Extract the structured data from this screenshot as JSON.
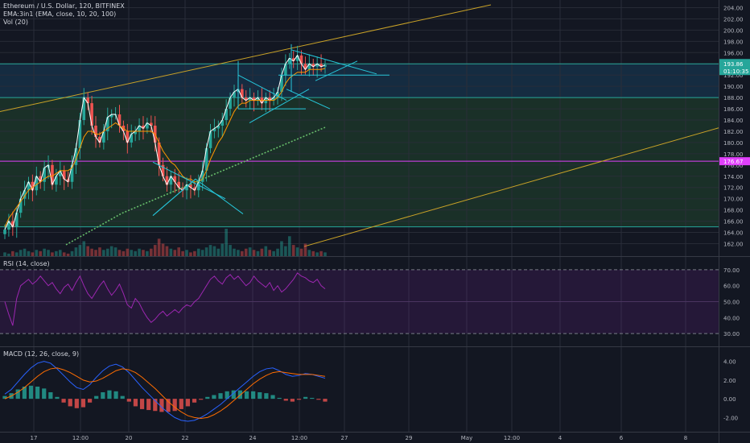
{
  "header": {
    "symbol_line": "Ethereum / U.S. Dollar, 120, BITFINEX",
    "ema_line": "EMA:3in1 (EMA, close, 10, 20, 100)",
    "vol_line": "Vol (20)"
  },
  "price_axis": {
    "ticks": [
      "204.00",
      "202.00",
      "200.00",
      "198.00",
      "196.00",
      "194.00",
      "192.00",
      "190.00",
      "188.00",
      "186.00",
      "184.00",
      "182.00",
      "180.00",
      "178.00",
      "176.00",
      "174.00",
      "172.00",
      "170.00",
      "168.00",
      "166.00",
      "164.00",
      "162.00"
    ],
    "last_price_label": "193.86",
    "countdown_label": "01:10:35",
    "level_label": "176.67",
    "last_color": "#26a69a",
    "level_color": "#e040fb"
  },
  "rsi": {
    "title": "RSI (14, close)",
    "ticks": [
      "70.00",
      "60.00",
      "50.00",
      "40.00",
      "30.00"
    ],
    "line_color": "#9c27b0",
    "values": [
      50,
      42,
      35,
      52,
      60,
      62,
      64,
      61,
      63,
      66,
      63,
      60,
      62,
      58,
      55,
      59,
      61,
      57,
      62,
      66,
      60,
      55,
      52,
      56,
      60,
      63,
      58,
      54,
      57,
      61,
      55,
      48,
      46,
      52,
      49,
      44,
      40,
      37,
      39,
      42,
      44,
      41,
      43,
      45,
      43,
      46,
      48,
      47,
      50,
      52,
      56,
      60,
      64,
      66,
      63,
      61,
      65,
      67,
      64,
      66,
      63,
      60,
      62,
      66,
      63,
      61,
      59,
      62,
      57,
      60,
      56,
      58,
      61,
      64,
      68,
      66,
      65,
      63,
      62,
      64,
      60,
      58
    ]
  },
  "macd": {
    "title": "MACD (12, 26, close, 9)",
    "ticks": [
      "4.00",
      "2.00",
      "0.00",
      "-2.00"
    ],
    "macd_color": "#2962ff",
    "signal_color": "#ff6d00",
    "hist_up": "#26a69a",
    "hist_down": "#ef5350",
    "macd_values": [
      0.5,
      1.0,
      1.8,
      2.6,
      3.3,
      3.8,
      4.0,
      3.8,
      3.2,
      2.5,
      1.8,
      1.2,
      1.0,
      1.5,
      2.3,
      3.0,
      3.5,
      3.7,
      3.4,
      2.8,
      2.0,
      1.2,
      0.5,
      -0.2,
      -0.9,
      -1.5,
      -2.0,
      -2.3,
      -2.4,
      -2.3,
      -2.0,
      -1.6,
      -1.1,
      -0.6,
      0.0,
      0.6,
      1.2,
      1.8,
      2.4,
      2.9,
      3.2,
      3.3,
      3.0,
      2.6,
      2.4,
      2.5,
      2.7,
      2.6,
      2.4,
      2.2
    ],
    "signal_values": [
      0.0,
      0.3,
      0.7,
      1.2,
      1.8,
      2.4,
      2.9,
      3.2,
      3.3,
      3.1,
      2.8,
      2.4,
      2.0,
      1.8,
      1.9,
      2.2,
      2.6,
      3.0,
      3.2,
      3.1,
      2.8,
      2.3,
      1.7,
      1.1,
      0.4,
      -0.3,
      -0.9,
      -1.4,
      -1.8,
      -2.0,
      -2.1,
      -2.0,
      -1.7,
      -1.3,
      -0.8,
      -0.2,
      0.4,
      1.0,
      1.6,
      2.1,
      2.5,
      2.8,
      2.9,
      2.8,
      2.7,
      2.6,
      2.6,
      2.6,
      2.5,
      2.4
    ],
    "hist_values": [
      0.3,
      0.6,
      1.0,
      1.3,
      1.4,
      1.3,
      1.1,
      0.7,
      0.2,
      -0.4,
      -0.8,
      -1.0,
      -0.9,
      -0.4,
      0.3,
      0.7,
      0.9,
      0.8,
      0.3,
      -0.3,
      -0.8,
      -1.1,
      -1.2,
      -1.3,
      -1.4,
      -1.4,
      -1.3,
      -1.1,
      -0.8,
      -0.4,
      -0.1,
      0.2,
      0.4,
      0.6,
      0.8,
      0.9,
      0.9,
      0.8,
      0.8,
      0.7,
      0.6,
      0.4,
      0.1,
      -0.2,
      -0.3,
      -0.1,
      0.2,
      0.1,
      -0.1,
      -0.3
    ]
  },
  "time_axis": {
    "ticks": [
      "17",
      "12:00",
      "20",
      "22",
      "24",
      "12:00",
      "27",
      "29",
      "May",
      "12:00",
      "4",
      "6",
      "8"
    ]
  },
  "chart_data": {
    "type": "line",
    "title": "Ethereum / U.S. Dollar, 120, BITFINEX",
    "ylim": [
      161.5,
      204.5
    ],
    "up_color": "#26a69a",
    "down_color": "#ef5350",
    "series": [
      {
        "values": [
          164.5,
          166,
          165,
          167.5,
          170,
          171.5,
          173,
          171.5,
          174,
          173,
          175.5,
          176,
          172.5,
          174,
          175,
          173.5,
          173,
          176,
          179,
          184,
          188,
          187,
          183,
          181,
          180,
          182,
          184.5,
          185,
          185,
          183,
          182,
          180,
          181.5,
          182,
          183,
          182.5,
          183.5,
          183,
          180,
          176,
          174,
          172.5,
          174,
          173,
          172,
          171.5,
          172.5,
          172,
          171.5,
          173,
          175,
          179,
          182,
          182.5,
          183,
          184,
          186,
          188,
          189,
          189.5,
          188,
          187.5,
          188,
          187.5,
          188,
          187,
          188,
          187.5,
          188,
          189,
          192,
          194,
          195,
          194.5,
          195.5,
          194,
          193,
          194,
          193.5,
          194,
          193.5,
          193.8
        ]
      },
      {
        "values": [
          165,
          166.5,
          167.5,
          168.5,
          169.5,
          170.5,
          171.5,
          172,
          172.5,
          173,
          173.5,
          174,
          174,
          174.5,
          175,
          175,
          175,
          175.5,
          177,
          179,
          181,
          182,
          182,
          181.5,
          181.5,
          182,
          182.5,
          183,
          183.5,
          183,
          182.5,
          182,
          182,
          182,
          182,
          182,
          182,
          182,
          181.5,
          180,
          178.5,
          177.5,
          176.5,
          176,
          175,
          174,
          173.5,
          173.5,
          173,
          173,
          173.5,
          175,
          177,
          178.5,
          180,
          181,
          182.5,
          184,
          185.5,
          186.5,
          187,
          187,
          187.5,
          187.5,
          187.5,
          187.5,
          187.5,
          187.5,
          187.5,
          188,
          189,
          190.5,
          191.5,
          192,
          192.5,
          192.5,
          192.5,
          193,
          193,
          193,
          193,
          193.2
        ]
      },
      {
        "values": [
          161.8,
          162.2,
          162.6,
          163,
          163.4,
          163.8,
          164.2,
          164.6,
          165,
          165.4,
          165.8,
          166.2,
          166.6,
          167,
          167.4,
          167.7,
          168,
          168.3,
          168.6,
          168.9,
          169.2,
          169.5,
          169.8,
          170.1,
          170.4,
          170.7,
          171,
          171.3,
          171.6,
          171.9,
          172.2,
          172.5,
          172.8,
          173.1,
          173.4,
          173.7,
          174,
          174.3,
          174.6,
          174.9,
          175.2,
          175.5,
          175.8,
          176.1,
          176.4,
          176.7,
          177,
          177.3,
          177.6,
          177.9,
          178.2,
          178.5,
          178.8,
          179.1,
          179.4,
          179.7,
          180,
          180.3,
          180.6,
          180.9,
          181.2,
          181.5,
          181.8,
          182.1,
          182.4,
          182.7
        ]
      }
    ],
    "volume": [
      3,
      2,
      4,
      3,
      5,
      6,
      4,
      3,
      5,
      4,
      6,
      5,
      3,
      4,
      5,
      3,
      2,
      4,
      7,
      9,
      12,
      8,
      6,
      5,
      7,
      5,
      6,
      8,
      7,
      5,
      4,
      6,
      5,
      4,
      6,
      5,
      4,
      6,
      9,
      14,
      10,
      8,
      6,
      5,
      7,
      4,
      5,
      3,
      4,
      6,
      5,
      7,
      9,
      8,
      6,
      10,
      22,
      9,
      6,
      5,
      4,
      6,
      7,
      5,
      4,
      6,
      8,
      5,
      4,
      6,
      12,
      8,
      16,
      9,
      7,
      6,
      10,
      5,
      4,
      3,
      4,
      3
    ]
  }
}
